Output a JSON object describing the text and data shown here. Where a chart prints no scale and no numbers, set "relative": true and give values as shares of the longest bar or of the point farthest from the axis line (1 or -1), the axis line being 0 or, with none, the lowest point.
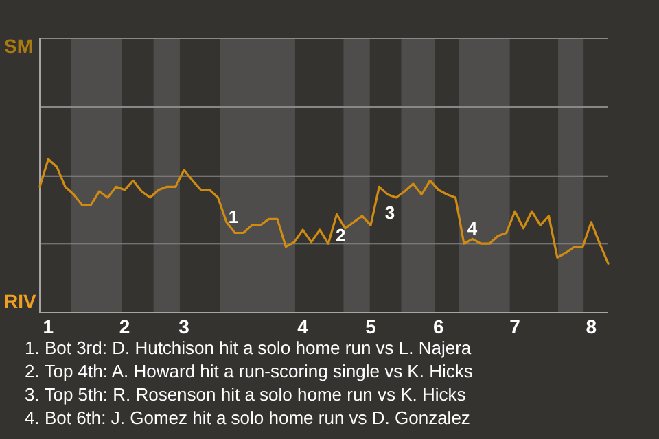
{
  "chart_data": {
    "type": "line",
    "relative": true,
    "marker": "none",
    "line_style": "solid",
    "ref_lines": [
      {
        "axis": "y",
        "value": 0.45,
        "color": "#8a8886"
      },
      {
        "axis": "y",
        "value": 0.89,
        "color": "#8a8886"
      }
    ],
    "categories": [
      null,
      "1",
      null,
      null,
      null,
      null,
      null,
      null,
      null,
      null,
      "2",
      null,
      null,
      null,
      null,
      null,
      null,
      "3",
      null,
      null,
      null,
      null,
      null,
      null,
      null,
      null,
      null,
      null,
      null,
      null,
      null,
      "4",
      null,
      null,
      null,
      null,
      null,
      null,
      null,
      "5",
      null,
      null,
      null,
      null,
      null,
      null,
      null,
      "6",
      null,
      null,
      null,
      null,
      null,
      null,
      null,
      null,
      "7",
      null,
      null,
      null,
      null,
      null,
      null,
      null,
      null,
      "8",
      null,
      null
    ],
    "series": [
      {
        "color": "#d08c12",
        "values": [
          0.82,
          1,
          0.95,
          0.82,
          0.77,
          0.7,
          0.7,
          0.79,
          0.75,
          0.82,
          0.8,
          0.86,
          0.79,
          0.75,
          0.8,
          0.82,
          0.82,
          0.93,
          0.86,
          0.8,
          0.8,
          0.75,
          0.59,
          0.52,
          0.52,
          0.57,
          0.57,
          0.61,
          0.61,
          0.43,
          0.46,
          0.54,
          0.46,
          0.54,
          0.45,
          0.64,
          0.55,
          0.59,
          0.63,
          0.57,
          0.82,
          0.77,
          0.75,
          0.79,
          0.84,
          0.77,
          0.86,
          0.8,
          0.77,
          0.75,
          0.45,
          0.48,
          0.45,
          0.45,
          0.5,
          0.52,
          0.66,
          0.55,
          0.66,
          0.57,
          0.63,
          0.36,
          0.39,
          0.43,
          0.43,
          0.59,
          0.45,
          0.32
        ]
      }
    ],
    "annotations": [
      "SM",
      "RIV",
      "1",
      "2",
      "3",
      "4",
      "1. Bot 3rd: D. Hutchison hit a solo home run vs L. Najera",
      "2. Top 4th: A. Howard hit a run-scoring single vs K. Hicks",
      "3. Top 5th: R. Rosenson hit a solo home run vs K. Hicks",
      "4. Bot 6th: J. Gomez hit a solo home run vs D. Gonzalez"
    ]
  }
}
